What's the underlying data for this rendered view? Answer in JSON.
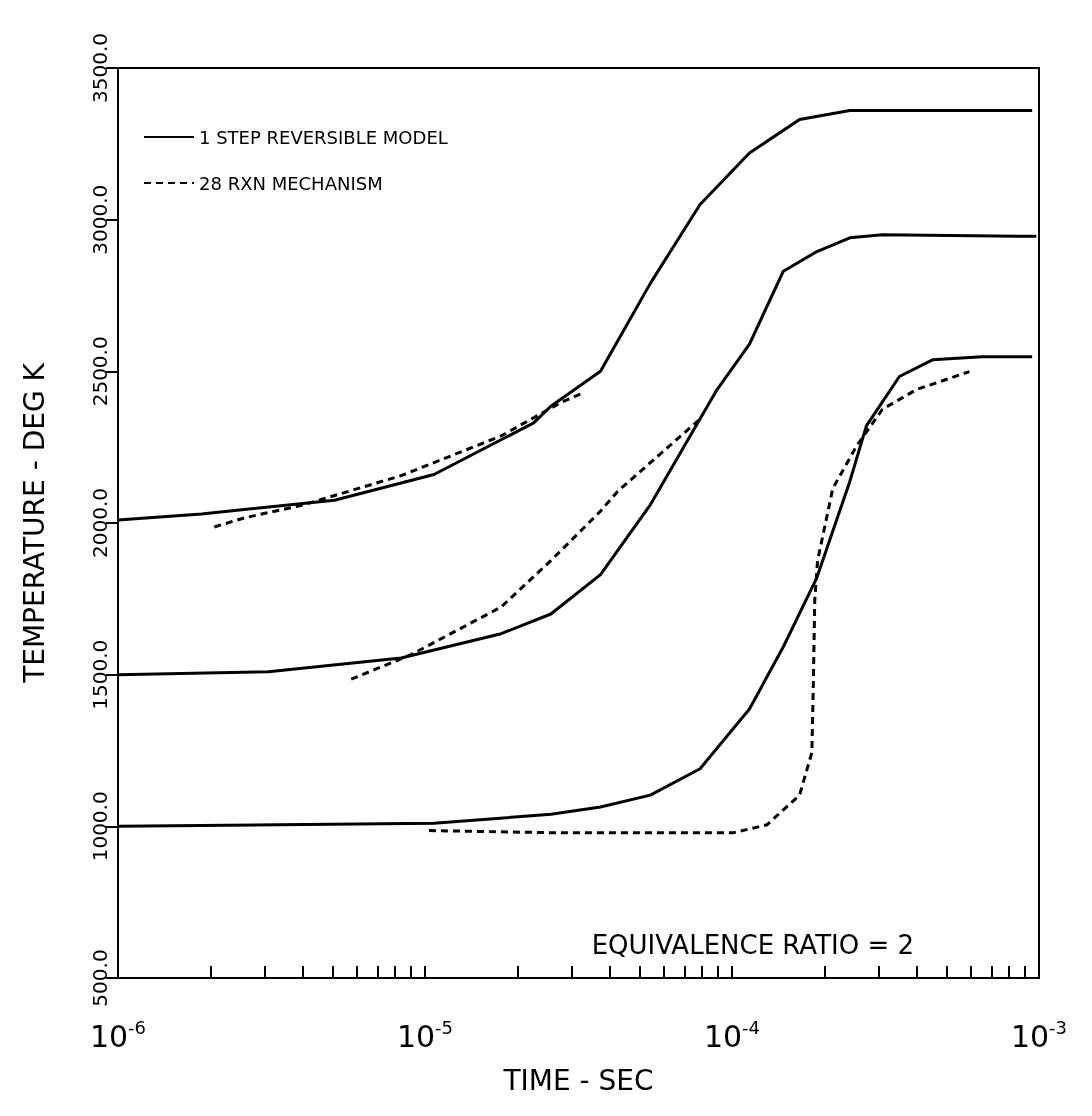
{
  "chart_data": {
    "type": "line",
    "xlabel": "TIME - SEC",
    "ylabel": "TEMPERATURE - DEG K",
    "log": "x",
    "grid": false,
    "legend": "top left",
    "marker": "none",
    "annotations": [
      "EQUIVALENCE RATIO = 2"
    ],
    "xlim": [
      1e-06,
      0.001
    ],
    "xticks": [
      {
        "value": 1e-06,
        "label": "10$^{-6}$"
      },
      {
        "value": 1e-05,
        "label": "10$^{-5}$"
      },
      {
        "value": 0.0001,
        "label": "10$^{-4}$"
      },
      {
        "value": 0.001,
        "label": "10$^{-3}$"
      }
    ],
    "ylim": [
      500,
      3500
    ],
    "yticks": [
      {
        "value": 500,
        "label": "500.0"
      },
      {
        "value": 1000,
        "label": "1000.0"
      },
      {
        "value": 1500,
        "label": "1500.0"
      },
      {
        "value": 2000,
        "label": "2000.0"
      },
      {
        "value": 2500,
        "label": "2500.0"
      },
      {
        "value": 3000,
        "label": "3000.0"
      },
      {
        "value": 3500,
        "label": "3500.0"
      }
    ],
    "series": [
      {
        "name": "1 STEP REVERSIBLE MODEL",
        "color": "#000000",
        "line_style": "solid",
        "x": [
          1e-06,
          1.87e-06,
          5.07e-06,
          1.07e-05,
          2.26e-05,
          2.57e-05,
          3.73e-05,
          5.42e-05,
          7.87e-05,
          0.000114,
          0.000166,
          0.000242,
          0.00095
        ],
        "values": [
          2010,
          2030,
          2075,
          2160,
          2330,
          2385,
          2500,
          2790,
          3050,
          3220,
          3330,
          3360,
          3360
        ]
      },
      {
        "color": "#000000",
        "line_style": "solid",
        "x": [
          1e-06,
          3.09e-06,
          8.36e-06,
          1.77e-05,
          2.57e-05,
          3.73e-05,
          5.42e-05,
          8.94e-05,
          0.000114,
          0.000147,
          0.000189,
          0.000242,
          0.000309,
          0.00098
        ],
        "values": [
          1500,
          1510,
          1555,
          1635,
          1700,
          1830,
          2060,
          2440,
          2590,
          2830,
          2895,
          2940,
          2950,
          2945
        ]
      },
      {
        "color": "#000000",
        "line_style": "solid",
        "x": [
          1e-06,
          1.07e-05,
          2.57e-05,
          3.73e-05,
          5.42e-05,
          7.87e-05,
          0.000114,
          0.000147,
          0.000189,
          0.000242,
          0.000274,
          0.000351,
          0.00045,
          0.000653,
          0.00095
        ],
        "values": [
          1000,
          1010,
          1040,
          1064,
          1103,
          1190,
          1387,
          1592,
          1820,
          2137,
          2320,
          2483,
          2538,
          2548,
          2548
        ]
      },
      {
        "name": "28 RXN MECHANISM",
        "color": "#000000",
        "line_style": "dashed",
        "x": [
          2.06e-06,
          2.58e-06,
          3.96e-06,
          8.36e-06,
          1.77e-05,
          2.77e-05,
          3.21e-05
        ],
        "values": [
          1987,
          2017,
          2058,
          2156,
          2287,
          2397,
          2425
        ]
      },
      {
        "color": "#000000",
        "line_style": "dashed",
        "x": [
          5.75e-06,
          9.01e-06,
          1.77e-05,
          2.57e-05,
          3.73e-05,
          4.24e-05,
          8e-05
        ],
        "values": [
          1485,
          1566,
          1723,
          1876,
          2039,
          2104,
          2349
        ]
      },
      {
        "color": "#000000",
        "line_style": "dashed",
        "x": [
          1.03e-05,
          2.57e-05,
          0.000101,
          0.00013,
          0.000166,
          0.000182,
          0.000184,
          0.000186,
          0.00019,
          0.000213,
          0.000255,
          0.000309,
          0.000399,
          0.000593
        ],
        "values": [
          986,
          979,
          979,
          1005,
          1103,
          1243,
          1462,
          1745,
          1876,
          2114,
          2255,
          2375,
          2440,
          2499
        ]
      }
    ]
  }
}
